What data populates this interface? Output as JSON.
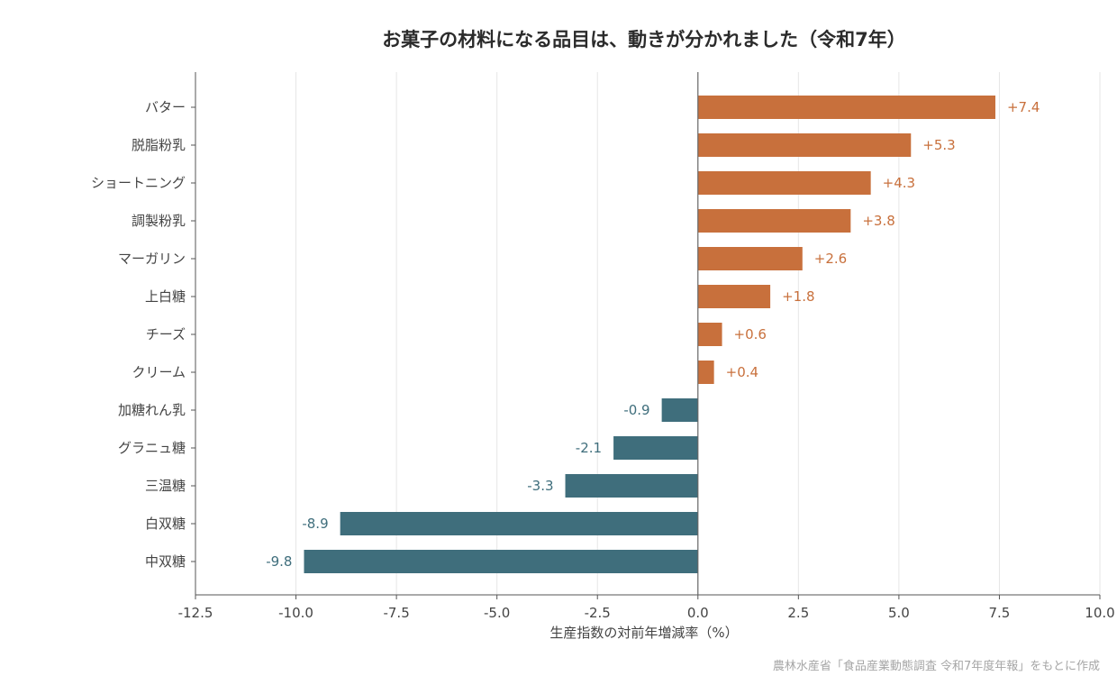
{
  "chart_data": {
    "type": "bar",
    "orientation": "horizontal",
    "title": "お菓子の材料になる品目は、動きが分かれました（令和7年）",
    "xlabel": "生産指数の対前年増減率（%）",
    "xlim": [
      -12.5,
      10.0
    ],
    "xticks": [
      "-12.5",
      "-10.0",
      "-7.5",
      "-5.0",
      "-2.5",
      "0.0",
      "2.5",
      "5.0",
      "7.5",
      "10.0"
    ],
    "grid": "vertical",
    "categories": [
      "バター",
      "脱脂粉乳",
      "ショートニング",
      "調製粉乳",
      "マーガリン",
      "上白糖",
      "チーズ",
      "クリーム",
      "加糖れん乳",
      "グラニュ糖",
      "三温糖",
      "白双糖",
      "中双糖"
    ],
    "values": [
      7.4,
      5.3,
      4.3,
      3.8,
      2.6,
      1.8,
      0.6,
      0.4,
      -0.9,
      -2.1,
      -3.3,
      -8.9,
      -9.8
    ],
    "labels": [
      "+7.4",
      "+5.3",
      "+4.3",
      "+3.8",
      "+2.6",
      "+1.8",
      "+0.6",
      "+0.4",
      "-0.9",
      "-2.1",
      "-3.3",
      "-8.9",
      "-9.8"
    ],
    "colors": {
      "positive": "#c8703c",
      "negative": "#3f6e7c",
      "axis": "#555555",
      "grid": "#e6e6e6"
    }
  },
  "source_note": "農林水産省「食品産業動態調査 令和7年度年報」をもとに作成"
}
